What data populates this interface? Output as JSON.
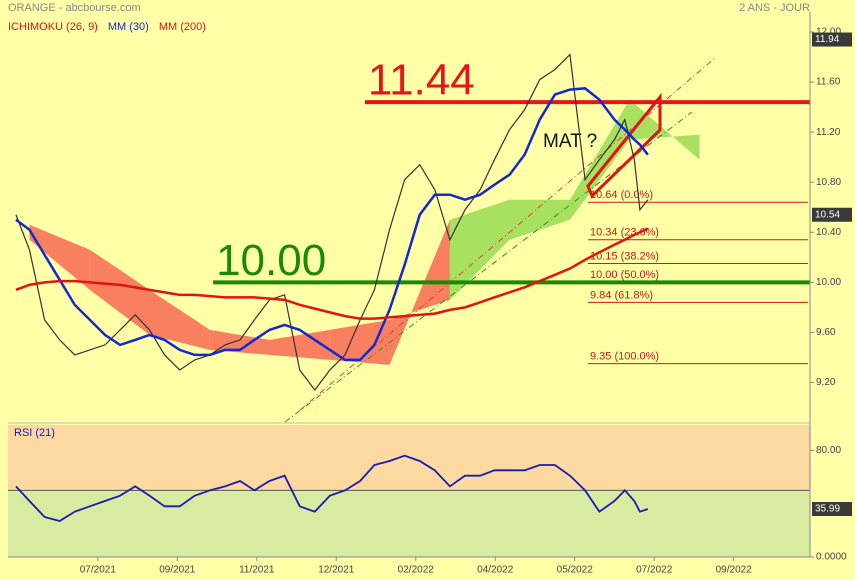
{
  "chart_data": [
    {
      "type": "line",
      "title": "ORANGE - abcbourse.com",
      "subtitle": "2 ANS - JOUR",
      "x": [
        -1.03,
        -0.86,
        -0.67,
        -0.48,
        -0.29,
        -0.1,
        0.09,
        0.28,
        0.47,
        0.65,
        0.84,
        1.03,
        1.22,
        1.41,
        1.6,
        1.79,
        1.97,
        2.16,
        2.35,
        2.54,
        2.73,
        2.92,
        3.11,
        3.3,
        3.48,
        3.67,
        3.86,
        4.05,
        4.24,
        4.43,
        4.62,
        4.81,
        4.99,
        5.18,
        5.37,
        5.56,
        5.75,
        5.94,
        6.13,
        6.31,
        6.5,
        6.63,
        6.75,
        6.82,
        6.92
      ],
      "series": [
        {
          "color": "#333333",
          "values": [
            10.54,
            10.26,
            9.7,
            9.54,
            9.42,
            9.46,
            9.5,
            9.62,
            9.74,
            9.62,
            9.42,
            9.3,
            9.38,
            9.42,
            9.5,
            9.54,
            9.7,
            9.86,
            9.9,
            9.3,
            9.14,
            9.3,
            9.42,
            9.7,
            9.94,
            10.42,
            10.82,
            10.94,
            10.74,
            10.34,
            10.58,
            10.74,
            10.98,
            11.22,
            11.38,
            11.62,
            11.7,
            11.82,
            10.82,
            10.98,
            11.14,
            11.3,
            10.98,
            10.58,
            10.66
          ]
        },
        {
          "name": "MM (30)",
          "color": "#1428d2",
          "values": [
            10.5,
            10.42,
            10.22,
            10.02,
            9.82,
            9.7,
            9.58,
            9.5,
            9.54,
            9.58,
            9.54,
            9.46,
            9.42,
            9.42,
            9.46,
            9.46,
            9.54,
            9.62,
            9.66,
            9.62,
            9.54,
            9.46,
            9.38,
            9.38,
            9.5,
            9.78,
            10.14,
            10.54,
            10.7,
            10.7,
            10.66,
            10.7,
            10.78,
            10.86,
            11.02,
            11.3,
            11.5,
            11.54,
            11.55,
            11.46,
            11.3,
            11.22,
            11.14,
            11.1,
            11.02
          ]
        },
        {
          "name": "MM (200)",
          "color": "#e01414",
          "values": [
            9.94,
            9.98,
            10.0,
            10.01,
            10.01,
            10.0,
            9.99,
            9.98,
            9.96,
            9.94,
            9.92,
            9.9,
            9.9,
            9.89,
            9.88,
            9.88,
            9.88,
            9.87,
            9.86,
            9.82,
            9.79,
            9.76,
            9.73,
            9.71,
            9.71,
            9.72,
            9.73,
            9.74,
            9.75,
            9.78,
            9.8,
            9.84,
            9.88,
            9.92,
            9.96,
            10.01,
            10.06,
            10.11,
            10.18,
            10.24,
            10.3,
            10.34,
            10.38,
            10.4,
            10.43
          ]
        }
      ],
      "cloud": {
        "name": "ICHIMOKU (26, 9)",
        "name_color": "#e01414",
        "up_color": "#a8e060",
        "down_color": "#f88060",
        "x": [
          -0.86,
          -0.1,
          0.65,
          1.41,
          2.16,
          2.92,
          3.67,
          4.43,
          5.18,
          5.94,
          6.69,
          7.57
        ],
        "span_a": [
          10.34,
          9.94,
          9.58,
          9.46,
          9.42,
          9.38,
          9.34,
          10.5,
          10.66,
          10.66,
          11.46,
          10.98
        ],
        "span_b": [
          10.46,
          10.26,
          9.94,
          9.62,
          9.54,
          9.62,
          9.7,
          9.86,
          10.34,
          10.5,
          11.14,
          11.18
        ]
      },
      "hlines": [
        {
          "value": 11.44,
          "label": "11.44",
          "color": "#e8141a",
          "from_x": 3.36
        },
        {
          "value": 10,
          "label": "10.00",
          "color": "#1a8a00",
          "from_x": 1.45
        }
      ],
      "levels": [
        {
          "value": 10.64,
          "label": "10.64 (0.0%)"
        },
        {
          "value": 10.34,
          "label": "10.34 (23.6%)"
        },
        {
          "value": 10.15,
          "label": "10.15 (38.2%)"
        },
        {
          "value": 10,
          "label": "10.00 (50.0%)"
        },
        {
          "value": 9.84,
          "label": "9.84 (61.8%)"
        },
        {
          "value": 9.35,
          "label": "9.35 (100.0%)"
        }
      ],
      "level_color": "#d01818",
      "annotation": "MAT ?",
      "price_tags": [
        11.94,
        10.54
      ],
      "xlim": [
        -1.13,
        8.96
      ],
      "xticks": [
        {
          "value": 0,
          "label": "07/2021"
        },
        {
          "value": 1,
          "label": "09/2021"
        },
        {
          "value": 2,
          "label": "11/2021"
        },
        {
          "value": 3,
          "label": "12/2021"
        },
        {
          "value": 4,
          "label": "02/2022"
        },
        {
          "value": 5,
          "label": "04/2022"
        },
        {
          "value": 6,
          "label": "05/2022"
        },
        {
          "value": 7,
          "label": "07/2022"
        },
        {
          "value": 8,
          "label": "09/2022"
        }
      ],
      "ylim": [
        8.9,
        12.16
      ],
      "yticks": [
        {
          "value": 9.2,
          "label": "9.20"
        },
        {
          "value": 9.6,
          "label": "9.60"
        },
        {
          "value": 10,
          "label": "10.00"
        },
        {
          "value": 10.4,
          "label": "10.40"
        },
        {
          "value": 10.8,
          "label": "10.80"
        },
        {
          "value": 11.2,
          "label": "11.20"
        },
        {
          "value": 11.6,
          "label": "11.60"
        },
        {
          "value": 12,
          "label": "12.00"
        }
      ]
    },
    {
      "type": "line",
      "title": "RSI (21)",
      "series": [
        {
          "color": "#1a1ab4",
          "values": [
            53,
            42,
            30,
            27,
            34,
            38,
            42,
            46,
            53,
            46,
            38,
            38,
            46,
            50,
            53,
            57,
            50,
            57,
            61,
            38,
            34,
            46,
            50,
            57,
            69,
            72,
            76,
            72,
            65,
            53,
            61,
            61,
            65,
            65,
            65,
            69,
            69,
            61,
            50,
            34,
            42,
            50,
            42,
            34,
            35.99
          ]
        }
      ],
      "threshold": 50,
      "upper_color": "#fcd9a0",
      "lower_color": "#d9eba0",
      "price_tags": [
        35.99
      ],
      "ylim": [
        0,
        99
      ],
      "yticks": [
        {
          "value": 80,
          "label": "80.00"
        },
        {
          "value": 0,
          "label": "0.0000"
        }
      ]
    }
  ]
}
